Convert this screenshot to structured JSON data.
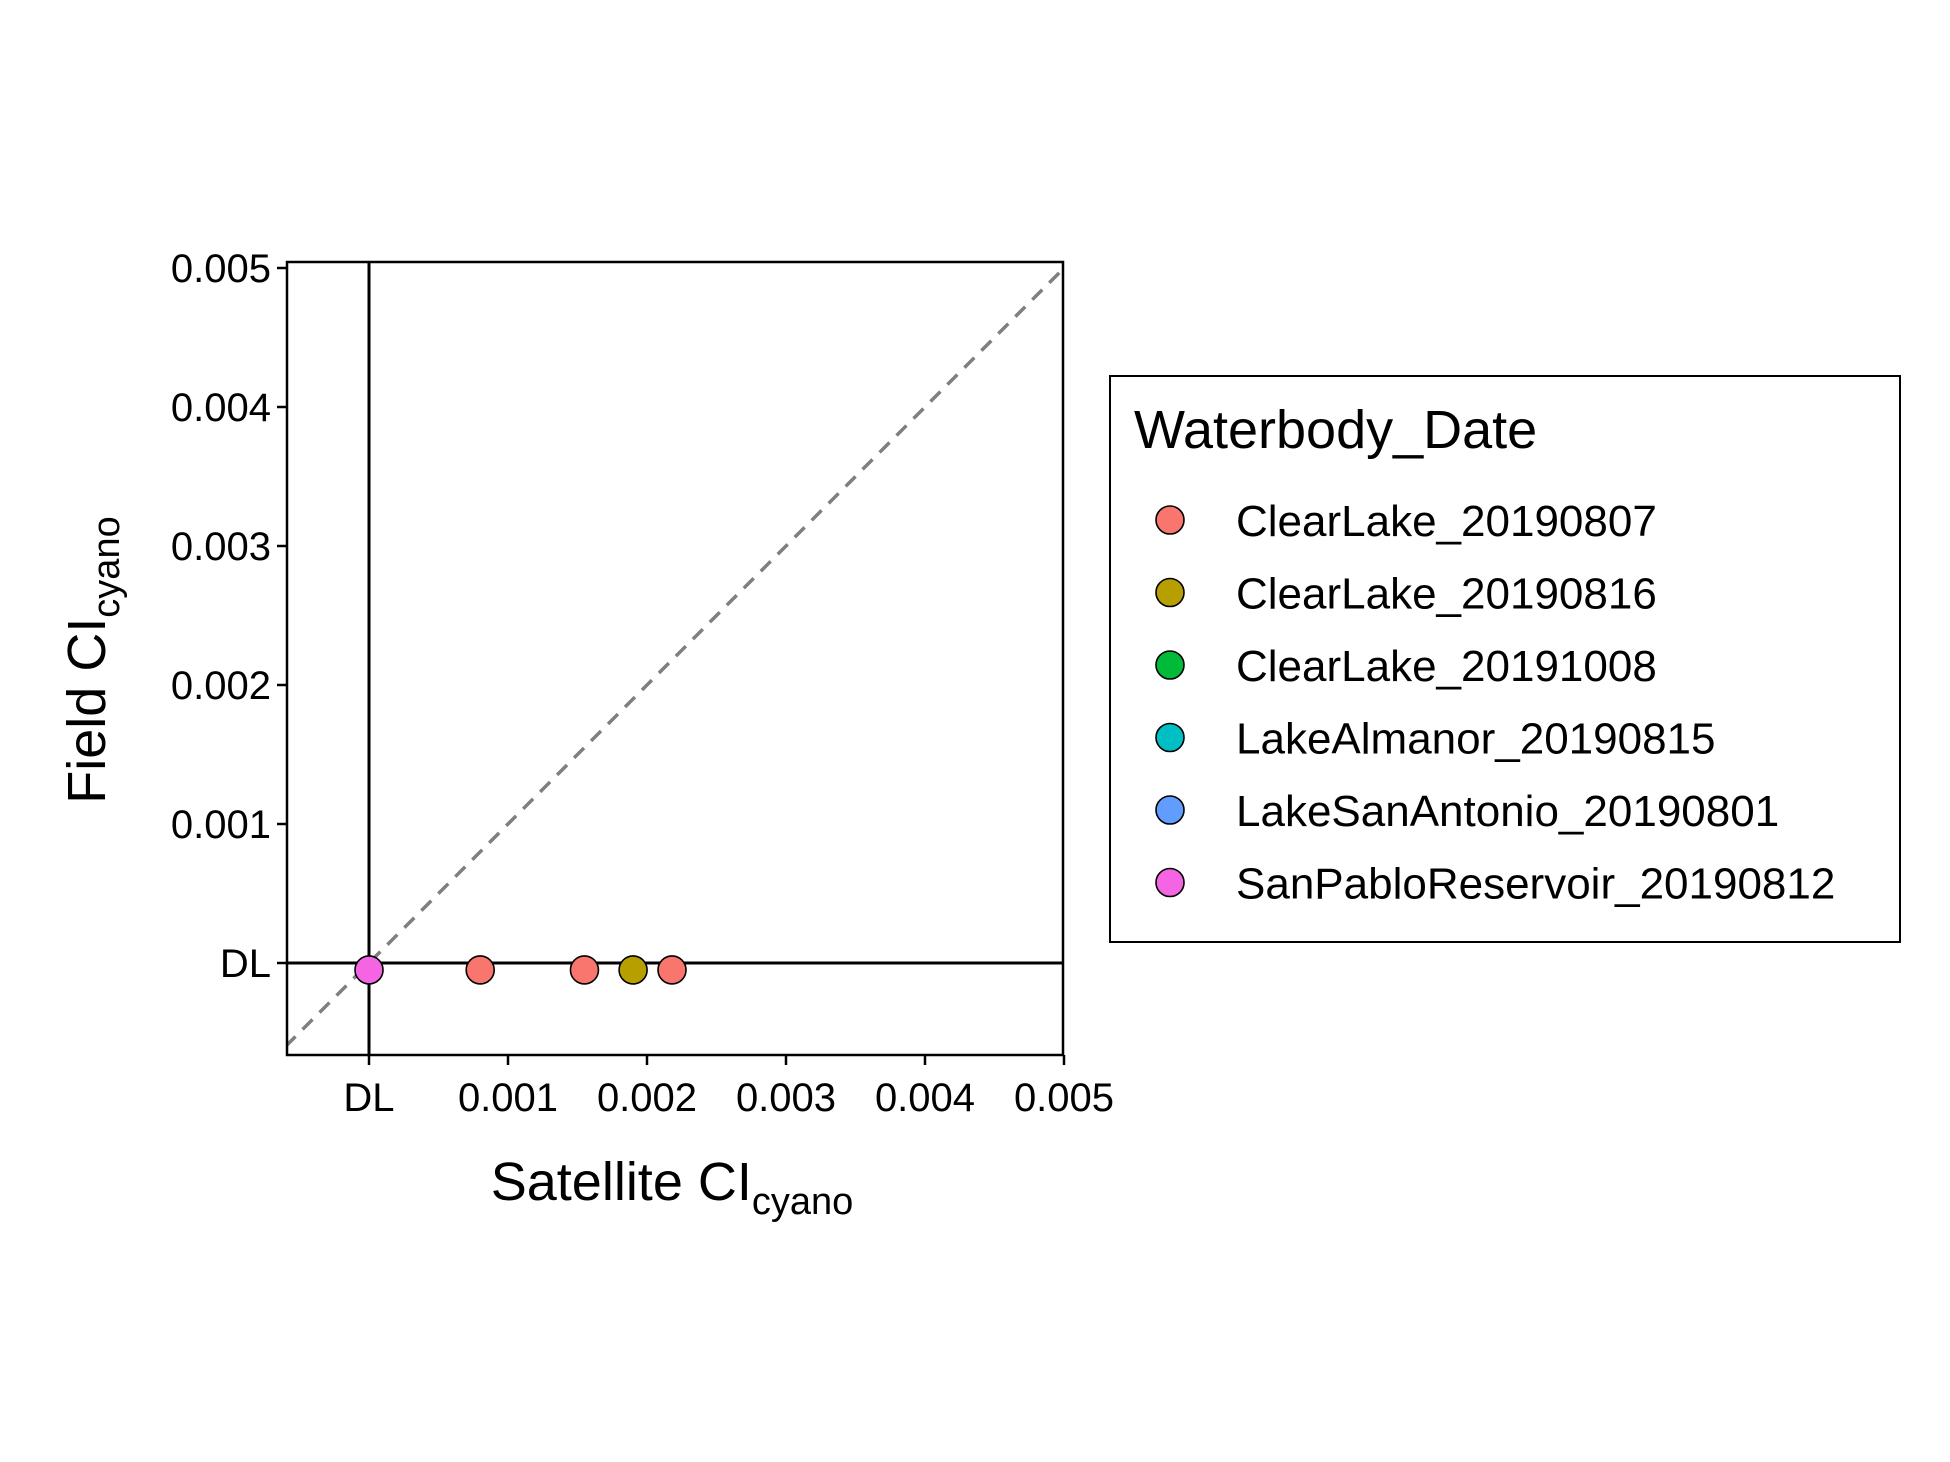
{
  "chart_data": {
    "type": "scatter",
    "title": "",
    "xlabel": {
      "main": "Satellite CI",
      "sub": "cyano"
    },
    "ylabel": {
      "main": "Field CI",
      "sub": "cyano"
    },
    "detection_limit_label": "DL",
    "detection_limit_value": 0,
    "xlim": [
      -0.0006,
      0.005
    ],
    "ylim": [
      -0.0006,
      0.005
    ],
    "x_ticks": [
      {
        "value": 0,
        "label": "DL"
      },
      {
        "value": 0.001,
        "label": "0.001"
      },
      {
        "value": 0.002,
        "label": "0.002"
      },
      {
        "value": 0.003,
        "label": "0.003"
      },
      {
        "value": 0.004,
        "label": "0.004"
      },
      {
        "value": 0.005,
        "label": "0.005"
      }
    ],
    "y_ticks": [
      {
        "value": 0,
        "label": "DL"
      },
      {
        "value": 0.001,
        "label": "0.001"
      },
      {
        "value": 0.002,
        "label": "0.002"
      },
      {
        "value": 0.003,
        "label": "0.003"
      },
      {
        "value": 0.004,
        "label": "0.004"
      },
      {
        "value": 0.005,
        "label": "0.005"
      }
    ],
    "reference_line": {
      "type": "1:1",
      "style": "dashed",
      "color": "#7f7f7f"
    },
    "grid": false,
    "legend": {
      "title": "Waterbody_Date",
      "placement": "right",
      "entries": [
        {
          "name": "ClearLake_20190807",
          "color": "#F8766D"
        },
        {
          "name": "ClearLake_20190816",
          "color": "#B79F00"
        },
        {
          "name": "ClearLake_20191008",
          "color": "#00BA38"
        },
        {
          "name": "LakeAlmanor_20190815",
          "color": "#00BFC4"
        },
        {
          "name": "LakeSanAntonio_20190801",
          "color": "#619CFF"
        },
        {
          "name": "SanPabloReservoir_20190812",
          "color": "#F564E3"
        }
      ]
    },
    "series": [
      {
        "name": "ClearLake_20190807",
        "color": "#F8766D",
        "points": [
          {
            "x": 0.0008,
            "y": -5e-05
          },
          {
            "x": 0.00155,
            "y": -5e-05
          },
          {
            "x": 0.00218,
            "y": -5e-05
          }
        ]
      },
      {
        "name": "ClearLake_20190816",
        "color": "#B79F00",
        "points": [
          {
            "x": 0.0019,
            "y": -5e-05
          }
        ]
      },
      {
        "name": "SanPabloReservoir_20190812",
        "color": "#F564E3",
        "points": [
          {
            "x": 0,
            "y": -5e-05
          }
        ]
      }
    ]
  }
}
